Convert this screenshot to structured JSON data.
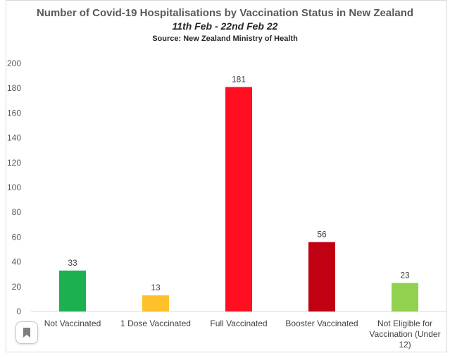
{
  "chart_data": {
    "type": "bar",
    "title": "Number of Covid-19 Hospitalisations by Vaccination Status in New Zealand",
    "subtitle": "11th Feb - 22nd Feb 22",
    "source": "Source: New Zealand Ministry of Health",
    "categories": [
      [
        "Not Vaccinated"
      ],
      [
        "1 Dose Vaccinated"
      ],
      [
        "Full Vaccinated"
      ],
      [
        "Booster Vaccinated"
      ],
      [
        "Not Eligible for",
        "Vaccination (Under",
        "12)"
      ]
    ],
    "values": [
      33,
      13,
      181,
      56,
      23
    ],
    "data_labels": [
      "33",
      "13",
      "181",
      "56",
      "23"
    ],
    "colors": [
      "#1db050",
      "#ffc12b",
      "#ff0f1f",
      "#c10011",
      "#92d050"
    ],
    "ylim": [
      0,
      200
    ],
    "yticks": [
      0,
      20,
      40,
      60,
      80,
      100,
      120,
      140,
      160,
      180,
      200
    ],
    "grid": false,
    "legend": "none",
    "xlabel": "",
    "ylabel": ""
  },
  "ui": {
    "bookmark_icon": "bookmark-icon"
  }
}
